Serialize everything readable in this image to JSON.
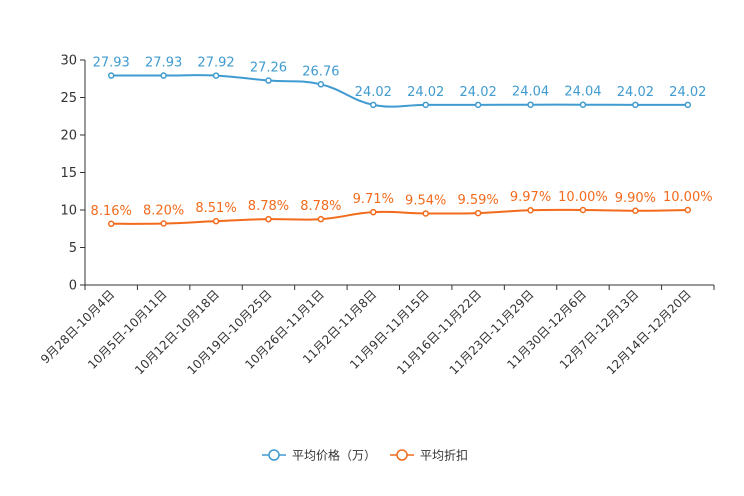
{
  "chart_data": {
    "type": "line",
    "categories": [
      "9月28日-10月4日",
      "10月5日-10月11日",
      "10月12日-10月18日",
      "10月19日-10月25日",
      "10月26日-11月1日",
      "11月2日-11月8日",
      "11月9日-11月15日",
      "11月16日-11月22日",
      "11月23日-11月29日",
      "11月30日-12月6日",
      "12月7日-12月13日",
      "12月14日-12月20日"
    ],
    "ylim": [
      0,
      30
    ],
    "yticks": [
      0,
      5,
      10,
      15,
      20,
      25,
      30
    ],
    "legend_position": "bottom-center",
    "series": [
      {
        "name": "平均价格（万）",
        "color": "#3f9bd0",
        "values": [
          27.93,
          27.93,
          27.92,
          27.26,
          26.76,
          24.02,
          24.02,
          24.02,
          24.04,
          24.04,
          24.02,
          24.02
        ],
        "labels": [
          "27.93",
          "27.93",
          "27.92",
          "27.26",
          "26.76",
          "24.02",
          "24.02",
          "24.02",
          "24.04",
          "24.04",
          "24.02",
          "24.02"
        ]
      },
      {
        "name": "平均折扣",
        "color": "#f26b1d",
        "values": [
          8.16,
          8.2,
          8.51,
          8.78,
          8.78,
          9.71,
          9.54,
          9.59,
          9.97,
          10.0,
          9.9,
          10.0
        ],
        "labels": [
          "8.16%",
          "8.20%",
          "8.51%",
          "8.78%",
          "8.78%",
          "9.71%",
          "9.54%",
          "9.59%",
          "9.97%",
          "10.00%",
          "9.90%",
          "10.00%"
        ]
      }
    ]
  }
}
